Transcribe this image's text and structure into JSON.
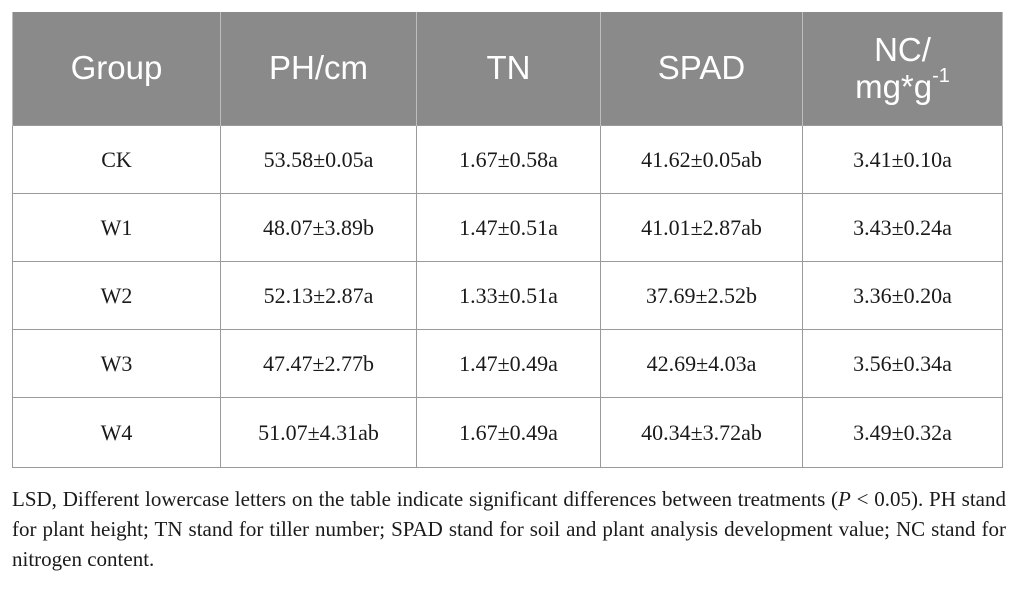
{
  "table": {
    "headers": [
      "Group",
      "PH/cm",
      "TN",
      "SPAD",
      "NC/",
      "mg*g",
      "-1"
    ],
    "rows": [
      [
        "CK",
        "53.58±0.05a",
        "1.67±0.58a",
        "41.62±0.05ab",
        "3.41±0.10a"
      ],
      [
        "W1",
        "48.07±3.89b",
        "1.47±0.51a",
        "41.01±2.87ab",
        "3.43±0.24a"
      ],
      [
        "W2",
        "52.13±2.87a",
        "1.33±0.51a",
        "37.69±2.52b",
        "3.36±0.20a"
      ],
      [
        "W3",
        "47.47±2.77b",
        "1.47±0.49a",
        "42.69±4.03a",
        "3.56±0.34a"
      ],
      [
        "W4",
        "51.07±4.31ab",
        "1.67±0.49a",
        "40.34±3.72ab",
        "3.49±0.32a"
      ]
    ]
  },
  "note": {
    "part1": "LSD, Different lowercase letters on the table indicate significant differences between treatments (",
    "p_symbol": "P",
    "part2": " < 0.05). PH stand for plant height; TN stand for tiller number; SPAD stand for soil and plant analysis development value; NC stand for nitrogen content."
  }
}
